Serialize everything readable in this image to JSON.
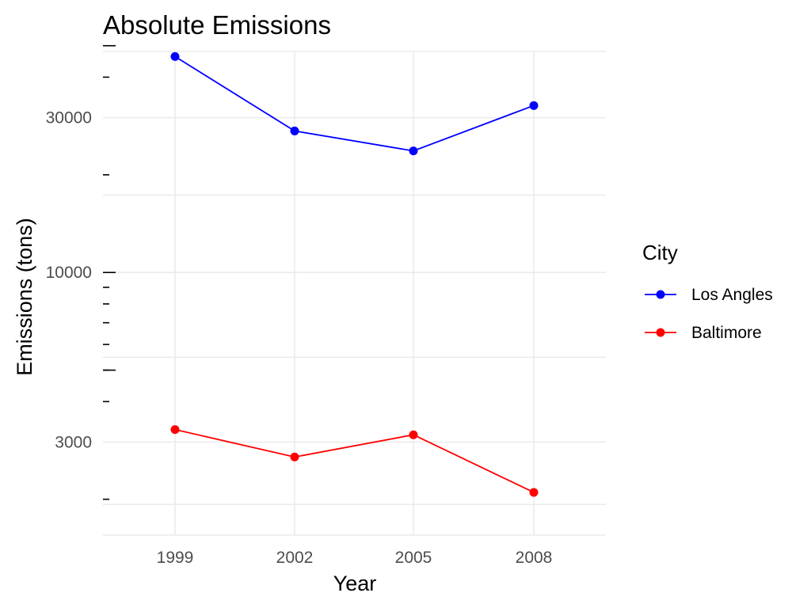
{
  "chart_data": {
    "type": "line",
    "title": "Absolute Emissions",
    "xlabel": "Year",
    "ylabel": "Emissions (tons)",
    "y_scale": "log",
    "ylim": [
      1550,
      48000
    ],
    "x": [
      "1999",
      "2002",
      "2005",
      "2008"
    ],
    "y_ticks": [
      3000,
      10000,
      30000
    ],
    "y_tick_labels": [
      "3000",
      "10000",
      "30000"
    ],
    "y_minor_ticks": [
      2000,
      4000,
      5000,
      6000,
      7000,
      8000,
      9000,
      20000,
      40000
    ],
    "y_long_ticks": [
      5000,
      10000,
      50000
    ],
    "grid": true,
    "legend": {
      "title": "City",
      "position": "right",
      "entries": [
        "Los Angles",
        "Baltimore"
      ]
    },
    "series": [
      {
        "name": "Los Angles",
        "color": "#0000ff",
        "values": [
          46300,
          27300,
          23700,
          32700
        ]
      },
      {
        "name": "Baltimore",
        "color": "#ff0000",
        "values": [
          3280,
          2700,
          3160,
          2100
        ]
      }
    ]
  }
}
